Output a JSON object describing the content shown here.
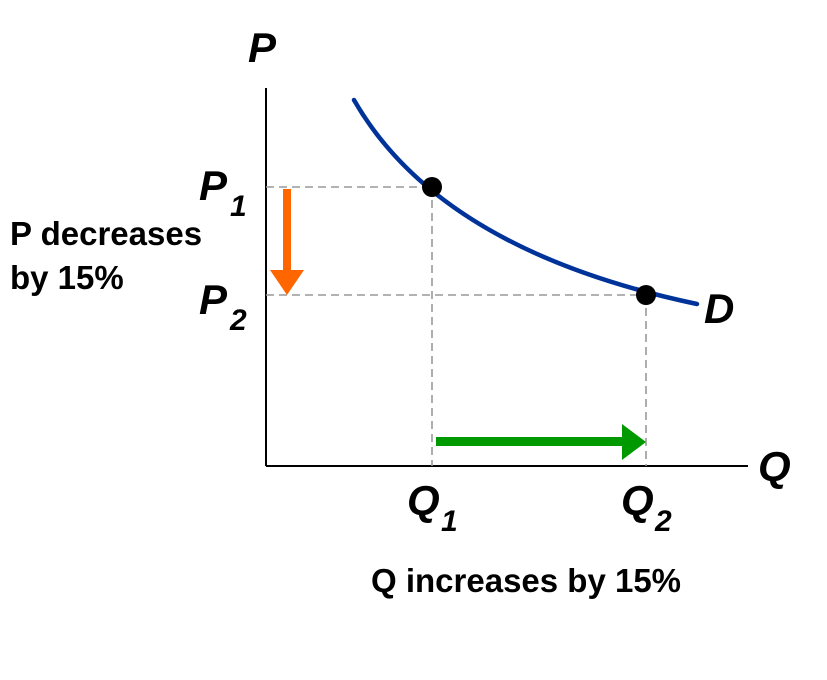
{
  "axes": {
    "y_label": "P",
    "x_label": "Q"
  },
  "curve": {
    "label": "D",
    "color": "#003399"
  },
  "points": {
    "p1": {
      "main": "P",
      "sub": "1"
    },
    "p2": {
      "main": "P",
      "sub": "2"
    },
    "q1": {
      "main": "Q",
      "sub": "1"
    },
    "q2": {
      "main": "Q",
      "sub": "2"
    }
  },
  "annotations": {
    "price_change_line1": "P decreases",
    "price_change_line2": "by 15%",
    "quantity_change": "Q increases by 15%"
  },
  "colors": {
    "price_arrow": "#ff6600",
    "quantity_arrow": "#009900",
    "guide_lines": "#999999",
    "points": "#000000"
  }
}
